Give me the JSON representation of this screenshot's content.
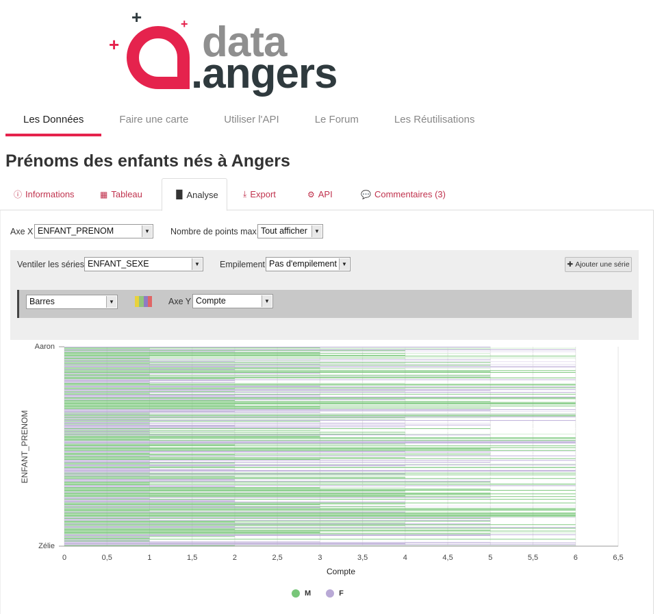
{
  "brand": {
    "word_top": "data",
    "word_bottom": ".angers",
    "red": "#e5234d",
    "grey": "#8f8f8f",
    "dark": "#2f3a3e"
  },
  "nav": [
    {
      "label": "Les Données",
      "active": true
    },
    {
      "label": "Faire une carte"
    },
    {
      "label": "Utiliser l'API"
    },
    {
      "label": "Le Forum"
    },
    {
      "label": "Les Réutilisations"
    }
  ],
  "page_title": "Prénoms des enfants nés à Angers",
  "tabs": [
    {
      "label": "Informations",
      "icon": "info-circle-icon"
    },
    {
      "label": "Tableau",
      "icon": "table-icon"
    },
    {
      "label": "Analyse",
      "icon": "bar-chart-icon",
      "active": true
    },
    {
      "label": "Export",
      "icon": "download-icon"
    },
    {
      "label": "API",
      "icon": "cogs-icon"
    },
    {
      "label": "Commentaires (3)",
      "icon": "comments-icon"
    }
  ],
  "controls": {
    "x_axis_label": "Axe X",
    "x_axis_value": "ENFANT_PRENOM",
    "max_points_label": "Nombre de points max.",
    "max_points_value": "Tout afficher",
    "split_label": "Ventiler les séries",
    "split_value": "ENFANT_SEXE",
    "stack_label": "Empilement",
    "stack_value": "Pas d'empilement",
    "add_series_label": "Ajouter une série",
    "chart_type_value": "Barres",
    "y_axis_label": "Axe Y",
    "y_axis_value": "Compte",
    "palette_colors": [
      "#e8d23c",
      "#93c47d",
      "#8e7cc3",
      "#e06666"
    ]
  },
  "chart_data": {
    "type": "bar",
    "orientation": "horizontal",
    "xlabel": "Compte",
    "ylabel": "ENFANT_PRENOM",
    "xlim": [
      0,
      6.5
    ],
    "x_ticks": [
      "0",
      "0,5",
      "1",
      "1,5",
      "2",
      "2,5",
      "3",
      "3,5",
      "4",
      "4,5",
      "5",
      "5,5",
      "6",
      "6,5"
    ],
    "y_ticks": [
      "Aaron",
      "Zélie"
    ],
    "categories_first": "Aaron",
    "categories_last": "Zélie",
    "series": [
      {
        "name": "M",
        "color": "#78c679"
      },
      {
        "name": "F",
        "color": "#b9a9d6"
      }
    ],
    "approx_row_count": 220,
    "value_distribution_note": "Chaque prénom a une barre entre 1 et 6 ; les barres se répartissent en paliers 1, 2, 3, 4, 5 et 6.",
    "legend_position": "bottom-center",
    "grid": true
  }
}
